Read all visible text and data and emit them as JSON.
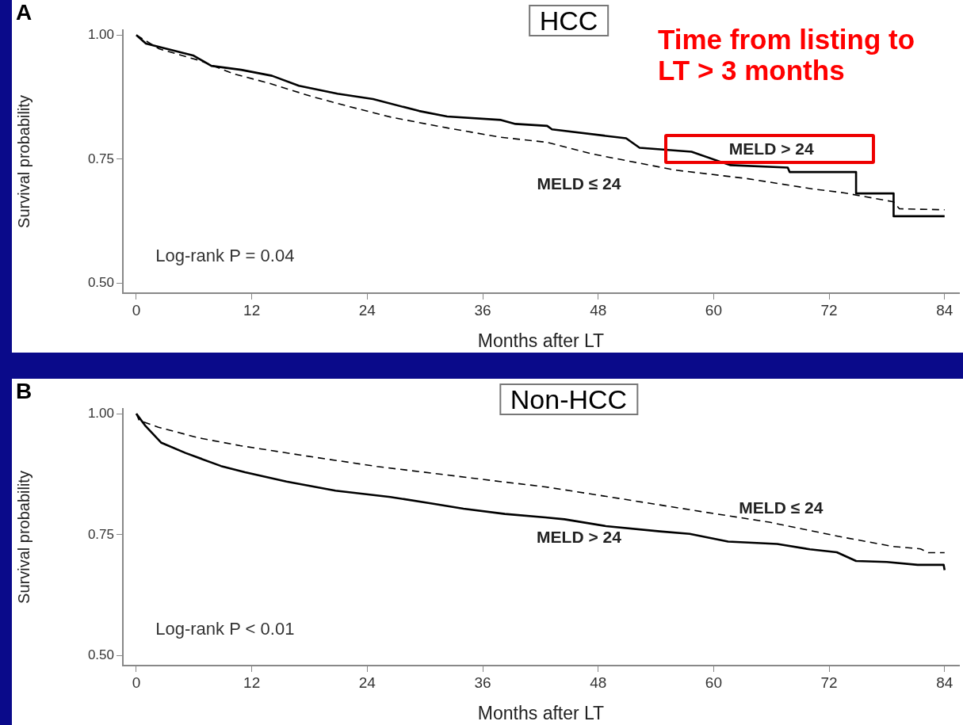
{
  "chart_data": [
    {
      "type": "line",
      "title": "HCC",
      "xlabel": "Months after LT",
      "ylabel": "Survival probability",
      "annotations": [
        "A",
        "Log-rank P = 0.04",
        "Time from listing to LT > 3 months"
      ],
      "xlim": [
        -1.4,
        85.5
      ],
      "xticks": [
        0,
        12,
        24,
        36,
        48,
        60,
        72,
        84
      ],
      "ylim": [
        0.48,
        1.01
      ],
      "yticks": [
        {
          "value": 0.5,
          "label": "0.50"
        },
        {
          "value": 0.75,
          "label": "0.75"
        },
        {
          "value": 1,
          "label": "1.00"
        }
      ],
      "grid": false,
      "legend": false,
      "marker": "none",
      "series": [
        {
          "name": "MELD > 24",
          "color": "#000000",
          "line_style": "solid",
          "x": [
            0,
            1.0,
            5.9,
            7.8,
            10.9,
            14.1,
            16.9,
            20.9,
            24.6,
            29.4,
            32.3,
            37.9,
            39.4,
            42.7,
            43.2,
            50.9,
            52.3,
            57.7,
            61.7,
            67.7,
            67.9,
            74.8,
            74.8,
            78.7,
            78.7,
            84
          ],
          "values": [
            1.0,
            0.983,
            0.959,
            0.938,
            0.93,
            0.918,
            0.898,
            0.882,
            0.871,
            0.847,
            0.836,
            0.829,
            0.821,
            0.817,
            0.81,
            0.792,
            0.773,
            0.765,
            0.738,
            0.733,
            0.724,
            0.724,
            0.681,
            0.681,
            0.635,
            0.635
          ]
        },
        {
          "name": "MELD ≤ 24",
          "color": "#000000",
          "line_style": "dashed",
          "x": [
            0,
            2.4,
            6.7,
            10.1,
            13.8,
            18.1,
            22.3,
            26.6,
            32.3,
            37.9,
            42.7,
            47.5,
            56,
            63.4,
            70.3,
            73.6,
            78.7,
            79.3,
            84
          ],
          "values": [
            1.0,
            0.972,
            0.948,
            0.922,
            0.903,
            0.877,
            0.855,
            0.834,
            0.813,
            0.794,
            0.784,
            0.76,
            0.728,
            0.711,
            0.69,
            0.682,
            0.664,
            0.65,
            0.648
          ]
        }
      ]
    },
    {
      "type": "line",
      "title": "Non-HCC",
      "xlabel": "Months after LT",
      "ylabel": "Survival probability",
      "annotations": [
        "B",
        "Log-rank P < 0.01"
      ],
      "xlim": [
        -1.4,
        85.5
      ],
      "xticks": [
        0,
        12,
        24,
        36,
        48,
        60,
        72,
        84
      ],
      "ylim": [
        0.48,
        1.01
      ],
      "yticks": [
        {
          "value": 0.5,
          "label": "0.50"
        },
        {
          "value": 0.75,
          "label": "0.75"
        },
        {
          "value": 1,
          "label": "1.00"
        }
      ],
      "grid": false,
      "legend": false,
      "marker": "none",
      "series": [
        {
          "name": "MELD > 24",
          "color": "#000000",
          "line_style": "solid",
          "x": [
            0,
            0.9,
            2.6,
            5.1,
            8.8,
            11.3,
            15.6,
            20.7,
            26.4,
            30.6,
            34,
            38.3,
            42.5,
            44.5,
            48.8,
            54.4,
            57.5,
            61.5,
            66.6,
            70,
            72.8,
            74.8,
            78,
            81.2,
            83.9,
            84
          ],
          "values": [
            1.0,
            0.976,
            0.94,
            0.919,
            0.892,
            0.879,
            0.86,
            0.841,
            0.828,
            0.815,
            0.804,
            0.793,
            0.786,
            0.782,
            0.768,
            0.757,
            0.752,
            0.736,
            0.731,
            0.72,
            0.714,
            0.696,
            0.694,
            0.688,
            0.688,
            0.677
          ]
        },
        {
          "name": "MELD ≤ 24",
          "color": "#000000",
          "line_style": "dashed",
          "x": [
            0,
            0.3,
            2.3,
            6.5,
            10.8,
            17.9,
            25,
            32.1,
            37.8,
            42.5,
            50.2,
            58.7,
            65.8,
            72.9,
            78.6,
            81.5,
            82.3,
            84
          ],
          "values": [
            1.0,
            0.986,
            0.972,
            0.95,
            0.934,
            0.912,
            0.891,
            0.874,
            0.86,
            0.849,
            0.825,
            0.798,
            0.776,
            0.747,
            0.726,
            0.721,
            0.713,
            0.713
          ]
        }
      ]
    }
  ]
}
